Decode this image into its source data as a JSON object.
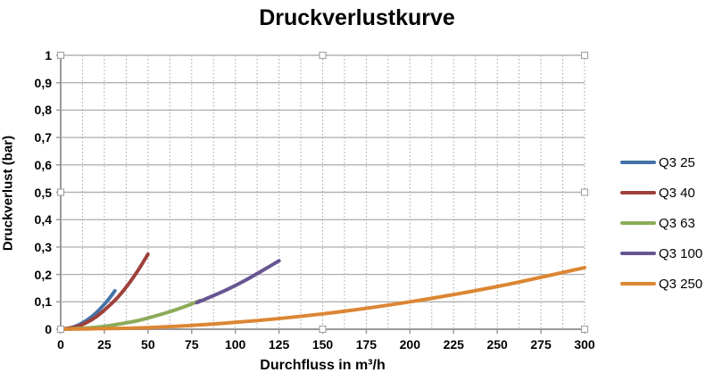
{
  "chart_data": {
    "type": "line",
    "title": "Druckverlustkurve",
    "xlabel": "Durchfluss in m³/h",
    "ylabel": "Druckverlust (bar)",
    "xlim": [
      0,
      300
    ],
    "ylim": [
      0,
      1
    ],
    "x_major_step": 25,
    "x_minor_step": 12.5,
    "y_major_step": 0.1,
    "grid": "horizontal solid, vertical dotted minor",
    "legend_position": "right",
    "x_tick_labels": [
      "0",
      "25",
      "50",
      "75",
      "100",
      "125",
      "150",
      "175",
      "200",
      "225",
      "250",
      "275",
      "300"
    ],
    "y_tick_labels": [
      "0",
      "0,1",
      "0,2",
      "0,3",
      "0,4",
      "0,5",
      "0,6",
      "0,7",
      "0,8",
      "0,9",
      "1"
    ],
    "colors": {
      "axis": "#9a9a9a",
      "h_grid": "#b3b3b3",
      "v_grid": "#a3a3a3",
      "handle_fill": "#ffffff",
      "handle_stroke": "#a6a6a6"
    },
    "series": [
      {
        "name": "Q3 25",
        "color": "#4573A7",
        "points": [
          [
            0,
            0
          ],
          [
            5,
            0.004
          ],
          [
            10,
            0.015
          ],
          [
            15,
            0.033
          ],
          [
            20,
            0.058
          ],
          [
            25,
            0.091
          ],
          [
            28,
            0.114
          ],
          [
            31,
            0.14
          ]
        ]
      },
      {
        "name": "Q3 40",
        "color": "#9E413A",
        "points": [
          [
            0,
            0
          ],
          [
            10,
            0.011
          ],
          [
            20,
            0.044
          ],
          [
            30,
            0.099
          ],
          [
            35,
            0.134
          ],
          [
            40,
            0.175
          ],
          [
            45,
            0.222
          ],
          [
            50,
            0.274
          ]
        ]
      },
      {
        "name": "Q3 63",
        "color": "#8CAB59",
        "points": [
          [
            0,
            0
          ],
          [
            20,
            0.007
          ],
          [
            40,
            0.026
          ],
          [
            50,
            0.041
          ],
          [
            60,
            0.059
          ],
          [
            70,
            0.08
          ],
          [
            80,
            0.105
          ]
        ]
      },
      {
        "name": "Q3 100",
        "color": "#675593",
        "points": [
          [
            78,
            0.097
          ],
          [
            85,
            0.116
          ],
          [
            95,
            0.144
          ],
          [
            105,
            0.176
          ],
          [
            115,
            0.212
          ],
          [
            125,
            0.25
          ]
        ]
      },
      {
        "name": "Q3 250",
        "color": "#DC8633",
        "points": [
          [
            0,
            0
          ],
          [
            50,
            0.006
          ],
          [
            100,
            0.025
          ],
          [
            150,
            0.056
          ],
          [
            200,
            0.1
          ],
          [
            250,
            0.156
          ],
          [
            300,
            0.225
          ]
        ]
      }
    ]
  }
}
